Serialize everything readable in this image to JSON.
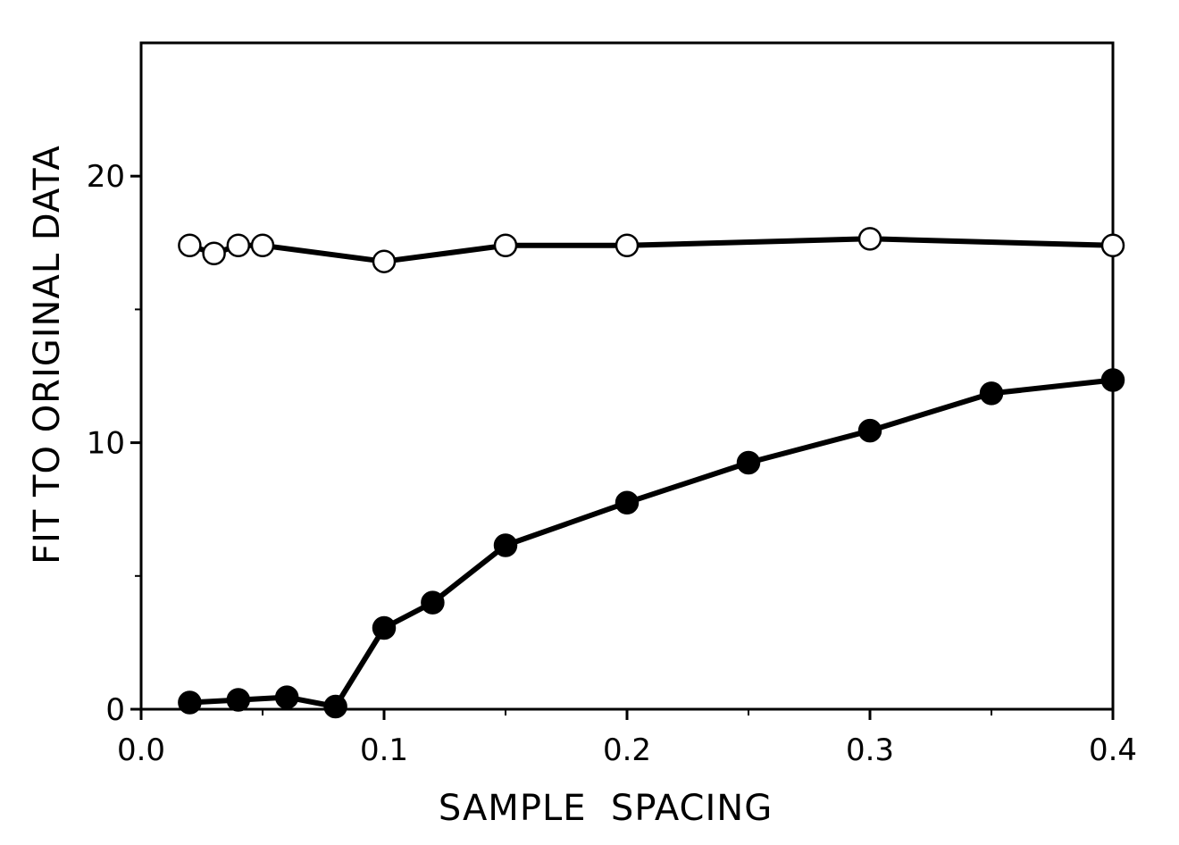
{
  "chart_data": {
    "type": "line",
    "title": "",
    "xlabel": "SAMPLE  SPACING",
    "ylabel": "FIT TO ORIGINAL DATA",
    "xlim": [
      0.0,
      0.4
    ],
    "ylim": [
      0,
      25
    ],
    "grid": false,
    "x_ticks": [
      {
        "value": 0.0,
        "label": "0.0"
      },
      {
        "value": 0.1,
        "label": "0.1"
      },
      {
        "value": 0.2,
        "label": "0.2"
      },
      {
        "value": 0.3,
        "label": "0.3"
      },
      {
        "value": 0.4,
        "label": "0.4"
      }
    ],
    "y_ticks": [
      {
        "value": 0,
        "label": "0"
      },
      {
        "value": 10,
        "label": "10"
      },
      {
        "value": 20,
        "label": "20"
      }
    ],
    "x_minor_ticks": [
      0.05,
      0.15,
      0.25,
      0.35
    ],
    "y_minor_ticks": [
      5,
      15
    ],
    "series": [
      {
        "marker": "open-circle",
        "color": "#000000",
        "x": [
          0.02,
          0.03,
          0.04,
          0.05,
          0.1,
          0.15,
          0.2,
          0.3,
          0.4
        ],
        "y": [
          17.4,
          17.1,
          17.4,
          17.4,
          16.8,
          17.4,
          17.4,
          17.65,
          17.4
        ]
      },
      {
        "marker": "filled-circle",
        "color": "#000000",
        "x": [
          0.02,
          0.04,
          0.06,
          0.08,
          0.1,
          0.12,
          0.15,
          0.2,
          0.25,
          0.3,
          0.35,
          0.4
        ],
        "y": [
          0.25,
          0.35,
          0.45,
          0.1,
          3.05,
          4.0,
          6.15,
          7.75,
          9.25,
          10.45,
          11.85,
          12.35
        ]
      }
    ]
  }
}
